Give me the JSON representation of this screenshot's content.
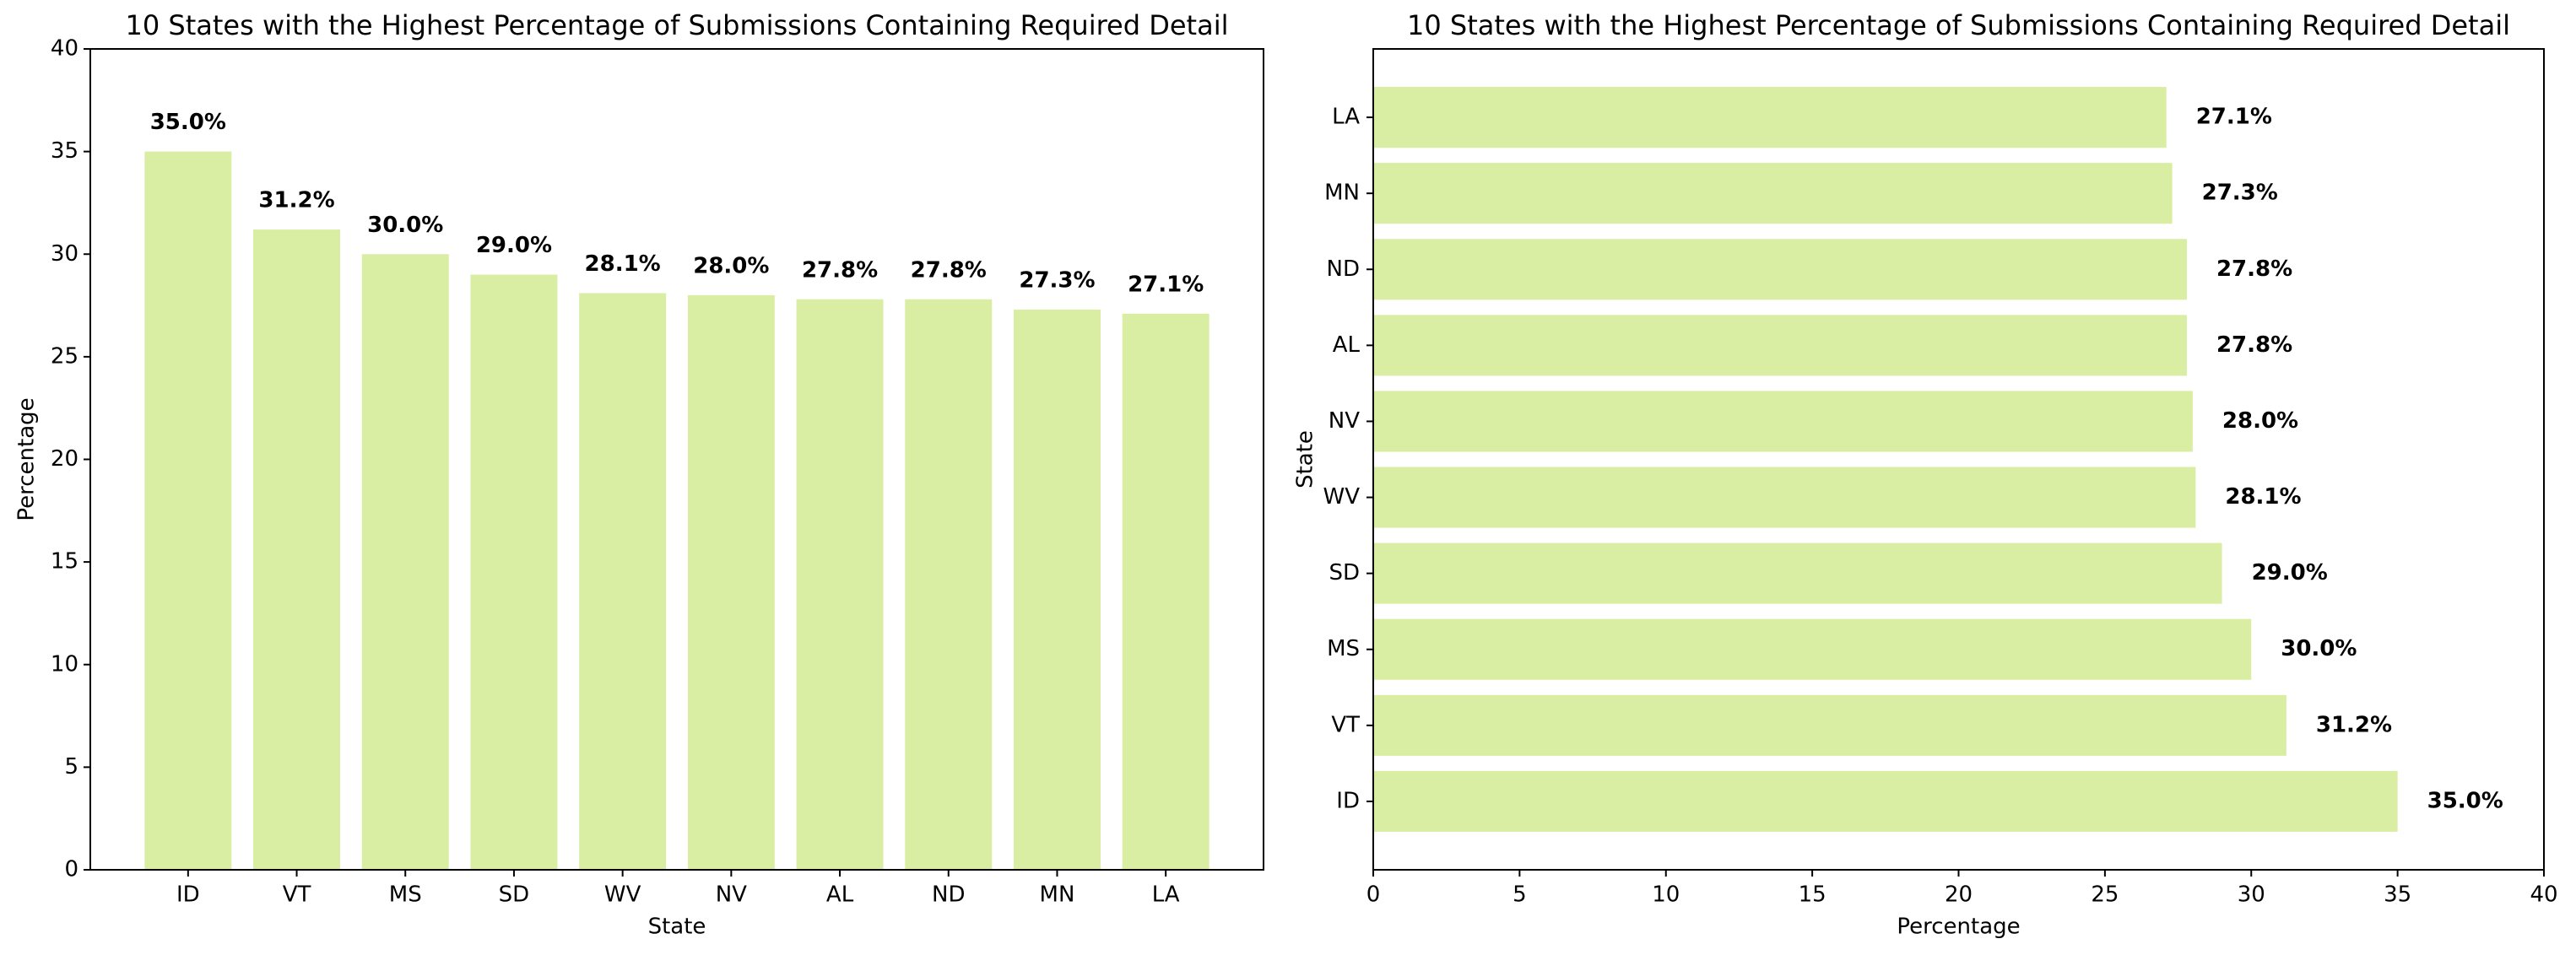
{
  "chart_data": [
    {
      "type": "bar",
      "title": "10 States with the Highest Percentage of Submissions Containing Required Detail",
      "x_label": "State",
      "y_label": "Percentage",
      "categories": [
        "ID",
        "VT",
        "MS",
        "SD",
        "WV",
        "NV",
        "AL",
        "ND",
        "MN",
        "LA"
      ],
      "values": [
        35.0,
        31.2,
        30.0,
        29.0,
        28.1,
        28.0,
        27.8,
        27.8,
        27.3,
        27.1
      ],
      "value_labels": [
        "35.0%",
        "31.2%",
        "30.0%",
        "29.0%",
        "28.1%",
        "28.0%",
        "27.8%",
        "27.8%",
        "27.3%",
        "27.1%"
      ],
      "color": "#d9eea2",
      "ylim": [
        0,
        40
      ],
      "yticks": [
        0,
        5,
        10,
        15,
        20,
        25,
        30,
        35,
        40
      ]
    },
    {
      "type": "barh",
      "title": "10 States with the Highest Percentage of Submissions Containing Required Detail",
      "x_label": "Percentage",
      "y_label": "State",
      "categories": [
        "ID",
        "VT",
        "MS",
        "SD",
        "WV",
        "NV",
        "AL",
        "ND",
        "MN",
        "LA"
      ],
      "values": [
        35.0,
        31.2,
        30.0,
        29.0,
        28.1,
        28.0,
        27.8,
        27.8,
        27.3,
        27.1
      ],
      "value_labels": [
        "35.0%",
        "31.2%",
        "30.0%",
        "29.0%",
        "28.1%",
        "28.0%",
        "27.8%",
        "27.8%",
        "27.3%",
        "27.1%"
      ],
      "color": "#d9eea2",
      "xlim": [
        0,
        40
      ],
      "xticks": [
        0,
        5,
        10,
        15,
        20,
        25,
        30,
        35,
        40
      ]
    }
  ]
}
